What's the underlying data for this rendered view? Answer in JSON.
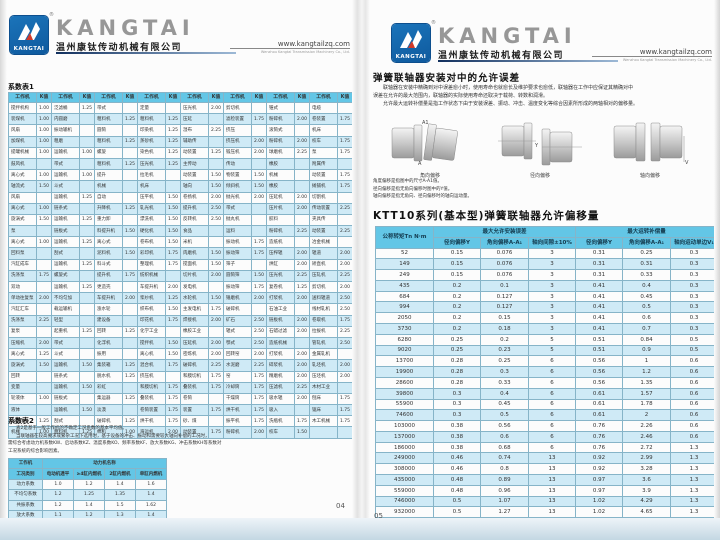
{
  "header": {
    "brand": "KANGTAI",
    "logo_text": "KANGTAI",
    "company": "温州康钛传动机械有限公司",
    "website": "www.kangtailzq.com",
    "website_sub": "Wenzhou Kangtai Transmission Machinery Co., Ltd."
  },
  "left_page": {
    "table1_title": "系数表1",
    "table1": {
      "header_row": [
        [
          "工作机",
          "K值",
          "工作机",
          "K值",
          "工作机",
          "K值",
          "工作机",
          "K值",
          "工作机",
          "K值",
          "工作机",
          "K值",
          "工作机",
          "K值",
          "工作机",
          "K值"
        ]
      ],
      "rows": [
        [
          "搅拌机构",
          "1.00",
          "泛滤桶",
          "1.25",
          "带式",
          "",
          "定量",
          "",
          "压光机",
          "2.00",
          "剪切机",
          "",
          "锥式",
          "",
          "电缆",
          ""
        ],
        [
          "装煤机",
          "1.00",
          "内圆磨",
          "",
          "粗料机",
          "1.25",
          "粗料机",
          "1.25",
          "压延",
          "",
          "滤检装置",
          "1.75",
          "粉碎机",
          "2.00",
          "卷装置",
          "1.75"
        ],
        [
          "风扇",
          "1.00",
          "振动输机",
          "",
          "圆筒",
          "",
          "印染机",
          "1.25",
          "湿布",
          "2.25",
          "挤压",
          "",
          "滚筒式",
          "",
          "机床",
          ""
        ],
        [
          "加煤机",
          "1.00",
          "粗磨",
          "",
          "粗料机",
          "1.25",
          "蒸砂机",
          "1.25",
          "辅助传",
          "",
          "挤压机",
          "2.00",
          "粉碎机",
          "2.00",
          "校车",
          "1.75"
        ],
        [
          "提罐机械",
          "1.00",
          "运输机",
          "1.00",
          "螺旋",
          "",
          "染色机",
          "1.25",
          "动装置",
          "1.25",
          "锻压机",
          "2.00",
          "球磨机",
          "2.25",
          "泵",
          "1.75"
        ],
        [
          "鼓风机",
          "",
          "带式",
          "",
          "粗料机",
          "1.25",
          "压光机",
          "1.25",
          "主传动",
          "",
          "传动",
          "",
          "橡胶",
          "",
          "附属传",
          ""
        ],
        [
          "离心式",
          "1.00",
          "运输机",
          "1.00",
          "提升",
          "",
          "拉毛机",
          "",
          "动装置",
          "1.50",
          "物装置",
          "1.50",
          "机械",
          "",
          "动装置",
          "1.75"
        ],
        [
          "轴流式",
          "1.50",
          "斗式",
          "",
          "机械",
          "",
          "机床",
          "",
          "轴向",
          "1.50",
          "倾斜机",
          "1.50",
          "橡胶",
          "",
          "摊铺机",
          "1.75"
        ],
        [
          "风扇",
          "",
          "运输机",
          "1.25",
          "自动",
          "",
          "压平机",
          "1.50",
          "卷扬机",
          "2.00",
          "抛光机",
          "2.00",
          "压延机",
          "2.00",
          "切割机",
          ""
        ],
        [
          "离心式",
          "1.00",
          "链条式",
          "",
          "升降机",
          "1.25",
          "轧光机",
          "1.50",
          "提升机",
          "2.50",
          "带式",
          "",
          "压片机",
          "2.00",
          "传动装置",
          "2.25"
        ],
        [
          "旋涡式",
          "1.50",
          "运输机",
          "1.25",
          "重力卸",
          "",
          "漂洗机",
          "1.50",
          "反转机",
          "2.50",
          "抛丸机",
          "",
          "胶料",
          "",
          "夹具传",
          ""
        ],
        [
          "泵",
          "",
          "链板式",
          "",
          "料提升机",
          "1.50",
          "硬化机",
          "1.50",
          "食品",
          "",
          "运料",
          "",
          "粉碎机",
          "2.25",
          "动装置",
          "2.25"
        ],
        [
          "离心式",
          "1.00",
          "运输机",
          "1.25",
          "离心式",
          "",
          "卷布机",
          "1.50",
          "米机",
          "",
          "振动机",
          "1.75",
          "造纸机",
          "",
          "冶金机械",
          ""
        ],
        [
          "回料泵",
          "",
          "刮式",
          "",
          "泥料机",
          "1.50",
          "彩印机",
          "1.75",
          "肉磨机",
          "1.50",
          "振动筛",
          "1.75",
          "压榨辊",
          "2.00",
          "辊道",
          "2.00"
        ],
        [
          "汽缸成车",
          "",
          "运输机",
          "1.25",
          "料斗式",
          "",
          "整理机",
          "1.75",
          "搅面机",
          "1.50",
          "筛子",
          "",
          "烘缸",
          "2.00",
          "矫直机",
          "2.00"
        ],
        [
          "洗涤泵",
          "1.75",
          "螺旋式",
          "",
          "提升机",
          "1.75",
          "纺织机械",
          "",
          "切片机",
          "2.00",
          "圆筒筛",
          "1.50",
          "压光机",
          "2.25",
          "压轧机",
          "2.25"
        ],
        [
          "双动",
          "",
          "运输机",
          "1.25",
          "更造壳",
          "",
          "车提升机",
          "2.00",
          "发电机",
          "",
          "振动筛",
          "1.75",
          "复卷机",
          "1.25",
          "剪切机",
          "2.00"
        ],
        [
          "单动往复泵",
          "2.00",
          "不均匀加",
          "",
          "车提升机",
          "2.00",
          "浆纱机",
          "1.25",
          "水轮机",
          "1.50",
          "锤磨机",
          "2.00",
          "打浆机",
          "2.00",
          "送料辊道",
          "2.50"
        ],
        [
          "汽缸汇车",
          "",
          "载运输机",
          "",
          "涨水轮",
          "",
          "织布机",
          "1.50",
          "主发电机",
          "1.75",
          "破碎机",
          "",
          "石油工业",
          "",
          "线材轧机",
          "2.50"
        ],
        [
          "洗涤泵",
          "2.25",
          "轻型",
          "",
          "建设备",
          "",
          "印花机",
          "1.75",
          "焊接机",
          "2.00",
          "矿石",
          "2.50",
          "链板机",
          "2.00",
          "卷取机",
          "1.75"
        ],
        [
          "复泵",
          "",
          "起重机",
          "1.25",
          "回转",
          "1.25",
          "化学工业",
          "",
          "橡胶工业",
          "",
          "辊式",
          "2.50",
          "石蜡过滤",
          "2.00",
          "拉拔机",
          "2.25"
        ],
        [
          "压缩机",
          "2.00",
          "带式",
          "",
          "化浮机",
          "",
          "搅拌机",
          "1.50",
          "压延机",
          "2.00",
          "鄂式",
          "2.50",
          "造纸机械",
          "",
          "管轧机",
          "2.50"
        ],
        [
          "离心式",
          "1.25",
          "斗式",
          "",
          "振用",
          "",
          "离心机",
          "1.50",
          "密炼机",
          "2.00",
          "回转窑",
          "2.00",
          "打浆机",
          "2.00",
          "金属轧机",
          ""
        ],
        [
          "旋涡式",
          "1.50",
          "运输机",
          "1.50",
          "集装箱",
          "1.25",
          "混合机",
          "1.75",
          "破碎机",
          "2.25",
          "水泥磨",
          "2.25",
          "碎浆机",
          "2.00",
          "轧坯机",
          "2.00"
        ],
        [
          "回转",
          "",
          "链条式",
          "",
          "脱水机",
          "1.25",
          "挤压机",
          "",
          "和膜切机",
          "1.75",
          "窑",
          "1.75",
          "精磨机",
          "2.00",
          "压坯机",
          "2.00"
        ],
        [
          "变量",
          "",
          "运输机",
          "1.50",
          "彩虹",
          "",
          "和膜切机",
          "1.75",
          "叠装机",
          "1.75",
          "冷却筒",
          "1.75",
          "压滤机",
          "2.25",
          "木材工业",
          ""
        ],
        [
          "轮液体",
          "1.00",
          "链板式",
          "",
          "集运器",
          "1.25",
          "叠装机",
          "1.75",
          "卷筒",
          "",
          "干燥筒",
          "1.75",
          "吸水辊",
          "2.00",
          "刨床",
          "1.75"
        ],
        [
          "液体",
          "",
          "运输机",
          "1.50",
          "淡漠",
          "",
          "卷筒装置",
          "1.75",
          "装置",
          "1.75",
          "烘干机",
          "1.75",
          "吸入",
          "",
          "锯床",
          "1.75"
        ],
        [
          "为固体",
          "1.25",
          "刮式",
          "",
          "破碎机",
          "1.25",
          "烘干机",
          "1.75",
          "砂、煤",
          "",
          "振平机",
          "1.75",
          "洗瓶机",
          "1.75",
          "木工机械",
          "1.75"
        ],
        [
          "机械",
          "1.00",
          "粗料机",
          "1.25",
          "棉机",
          "1.00",
          "海运机",
          "2.00",
          "动装置",
          "1.75",
          "粉碎机",
          "2.00",
          "校车",
          "1.50",
          "",
          ""
        ]
      ]
    },
    "table2_title": "系数表2",
    "table2_notes": [
      "表2是基于一般工作机的不确定工况系数的基本平均值。",
      "当联轴器在较高要求或繁杂工况下选用时，基于设备的冲击、振动和需要较大轴向补偿的工况时，",
      "需综合考虑动力机系数KW、启动系数KZ、温度系数KO、频率系数KF、放大系数KG、冲击系数KH等系数对",
      "工况系统的综合影响因素。"
    ],
    "table2": {
      "corner": "工作机",
      "group": "动力机名称",
      "sub_header": [
        [
          "工况类别",
          "电动机透平",
          "≥4缸内燃机",
          "2缸内燃机",
          "单缸内燃机"
        ]
      ],
      "rows": [
        [
          "动力系数",
          "1.0",
          "1.2",
          "1.4",
          "1.6"
        ],
        [
          "不均匀系数",
          "1.2",
          "1.25",
          "1.35",
          "1.4"
        ],
        [
          "共振系数",
          "1.2",
          "1.4",
          "1.5",
          "1.62"
        ],
        [
          "放大系数",
          "1.1",
          "1.2",
          "1.3",
          "1.4"
        ]
      ]
    },
    "page_number": "04"
  },
  "right_page": {
    "title": "弹簧联轴器安装对中的允许误差",
    "para": [
      "联轴器在安装中精确到对中误差愈小时，使用寿命也就愈长及维护要求也愈低，联轴器在工作中应保证其精确对中",
      "误差在允许的最大范围内，联轴器的实际使用寿命还取决于载荷、转数和润滑。",
      "允许最大运转补偿量是指工作状态下由于安装误差、振动、冲击、温度变化等综合因素所形成的两轴相对的偏移量。"
    ],
    "diagrams": {
      "fig1_caption": "角向偏移",
      "fig1_marker_top": "A1",
      "fig1_marker_bottom": "A",
      "fig2_caption": "径向偏移",
      "fig2_marker": "Y",
      "fig3_caption": "轴向偏移",
      "fig3_marker": "V"
    },
    "diagram_notes": [
      "角度偏移是指图中的尺寸A-A1值。",
      "径向偏移是指无角向偏移时图中的Y值。",
      "轴向偏移是指无角向、径向偏移时的轴向运动量。"
    ],
    "section_title": "KTT10系列(基本型)弹簧联轴器允许偏移量",
    "ktt10_table": {
      "col_torque": "公称转矩Tn N·m",
      "group_install": "最大允许安装误差",
      "group_run": "最大运转补偿量",
      "sub_radial": "径向偏移Y",
      "sub_angular": "角向偏移A-A₁",
      "sub_axial_gap": "轴向间隙±10%",
      "sub_axial_move": "轴向运动单边V₁",
      "rows": [
        [
          "52",
          "0.15",
          "0.076",
          "3",
          "0.31",
          "0.25",
          "0.3"
        ],
        [
          "149",
          "0.15",
          "0.076",
          "3",
          "0.31",
          "0.31",
          "0.3"
        ],
        [
          "249",
          "0.15",
          "0.076",
          "3",
          "0.31",
          "0.33",
          "0.3"
        ],
        [
          "435",
          "0.2",
          "0.1",
          "3",
          "0.41",
          "0.4",
          "0.3"
        ],
        [
          "684",
          "0.2",
          "0.127",
          "3",
          "0.41",
          "0.45",
          "0.3"
        ],
        [
          "994",
          "0.2",
          "0.127",
          "3",
          "0.41",
          "0.5",
          "0.3"
        ],
        [
          "2050",
          "0.2",
          "0.15",
          "3",
          "0.41",
          "0.6",
          "0.3"
        ],
        [
          "3730",
          "0.2",
          "0.18",
          "3",
          "0.41",
          "0.7",
          "0.3"
        ],
        [
          "6280",
          "0.25",
          "0.2",
          "5",
          "0.51",
          "0.84",
          "0.5"
        ],
        [
          "9020",
          "0.25",
          "0.23",
          "5",
          "0.51",
          "0.9",
          "0.5"
        ],
        [
          "13700",
          "0.28",
          "0.25",
          "6",
          "0.56",
          "1",
          "0.6"
        ],
        [
          "19900",
          "0.28",
          "0.3",
          "6",
          "0.56",
          "1.2",
          "0.6"
        ],
        [
          "28600",
          "0.28",
          "0.33",
          "6",
          "0.56",
          "1.35",
          "0.6"
        ],
        [
          "39800",
          "0.3",
          "0.4",
          "6",
          "0.61",
          "1.57",
          "0.6"
        ],
        [
          "55900",
          "0.3",
          "0.45",
          "6",
          "0.61",
          "1.78",
          "0.6"
        ],
        [
          "74600",
          "0.3",
          "0.5",
          "6",
          "0.61",
          "2",
          "0.6"
        ],
        [
          "103000",
          "0.38",
          "0.56",
          "6",
          "0.76",
          "2.26",
          "0.6"
        ],
        [
          "137000",
          "0.38",
          "0.6",
          "6",
          "0.76",
          "2.46",
          "0.6"
        ],
        [
          "186000",
          "0.38",
          "0.68",
          "6",
          "0.76",
          "2.72",
          "1.3"
        ],
        [
          "249000",
          "0.46",
          "0.74",
          "13",
          "0.92",
          "2.99",
          "1.3"
        ],
        [
          "308000",
          "0.46",
          "0.8",
          "13",
          "0.92",
          "3.28",
          "1.3"
        ],
        [
          "435000",
          "0.48",
          "0.89",
          "13",
          "0.97",
          "3.6",
          "1.3"
        ],
        [
          "559000",
          "0.48",
          "0.96",
          "13",
          "0.97",
          "3.9",
          "1.3"
        ],
        [
          "746000",
          "0.5",
          "1.07",
          "13",
          "1.02",
          "4.29",
          "1.3"
        ],
        [
          "932000",
          "0.5",
          "1.27",
          "13",
          "1.02",
          "4.65",
          "1.3"
        ],
        [
          "1130000",
          "0.62",
          "1.35",
          "20",
          "1.25",
          "5.2",
          "2.0"
        ],
        [
          "1320000",
          "0.62",
          "1.46",
          "20",
          "1.25",
          "5.68",
          "2.0"
        ]
      ]
    },
    "page_number": "05"
  }
}
